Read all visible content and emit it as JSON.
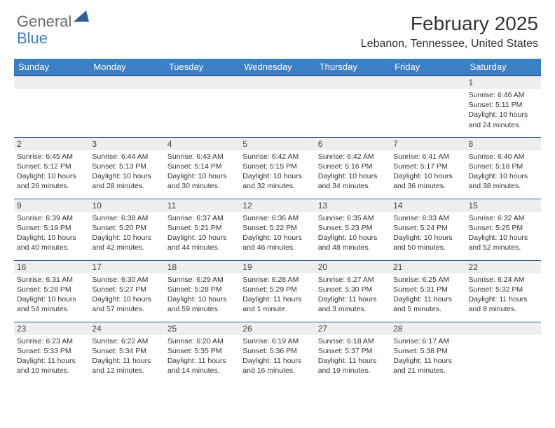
{
  "logo": {
    "text_general": "General",
    "text_blue": "Blue",
    "triangle_color": "#2d5f96"
  },
  "title": "February 2025",
  "location": "Lebanon, Tennessee, United States",
  "colors": {
    "header_bg": "#3b7fc4",
    "header_border": "#2d5f96",
    "daynum_bg": "#eeeeee",
    "text": "#333333",
    "logo_gray": "#6a6a6a",
    "logo_blue": "#3b7fc4"
  },
  "fonts": {
    "title_size": 28,
    "location_size": 16,
    "header_size": 13,
    "daynum_size": 12,
    "content_size": 10.5
  },
  "day_headers": [
    "Sunday",
    "Monday",
    "Tuesday",
    "Wednesday",
    "Thursday",
    "Friday",
    "Saturday"
  ],
  "weeks": [
    [
      {
        "day": "",
        "lines": []
      },
      {
        "day": "",
        "lines": []
      },
      {
        "day": "",
        "lines": []
      },
      {
        "day": "",
        "lines": []
      },
      {
        "day": "",
        "lines": []
      },
      {
        "day": "",
        "lines": []
      },
      {
        "day": "1",
        "lines": [
          "Sunrise: 6:46 AM",
          "Sunset: 5:11 PM",
          "Daylight: 10 hours and 24 minutes."
        ]
      }
    ],
    [
      {
        "day": "2",
        "lines": [
          "Sunrise: 6:45 AM",
          "Sunset: 5:12 PM",
          "Daylight: 10 hours and 26 minutes."
        ]
      },
      {
        "day": "3",
        "lines": [
          "Sunrise: 6:44 AM",
          "Sunset: 5:13 PM",
          "Daylight: 10 hours and 28 minutes."
        ]
      },
      {
        "day": "4",
        "lines": [
          "Sunrise: 6:43 AM",
          "Sunset: 5:14 PM",
          "Daylight: 10 hours and 30 minutes."
        ]
      },
      {
        "day": "5",
        "lines": [
          "Sunrise: 6:42 AM",
          "Sunset: 5:15 PM",
          "Daylight: 10 hours and 32 minutes."
        ]
      },
      {
        "day": "6",
        "lines": [
          "Sunrise: 6:42 AM",
          "Sunset: 5:16 PM",
          "Daylight: 10 hours and 34 minutes."
        ]
      },
      {
        "day": "7",
        "lines": [
          "Sunrise: 6:41 AM",
          "Sunset: 5:17 PM",
          "Daylight: 10 hours and 36 minutes."
        ]
      },
      {
        "day": "8",
        "lines": [
          "Sunrise: 6:40 AM",
          "Sunset: 5:18 PM",
          "Daylight: 10 hours and 38 minutes."
        ]
      }
    ],
    [
      {
        "day": "9",
        "lines": [
          "Sunrise: 6:39 AM",
          "Sunset: 5:19 PM",
          "Daylight: 10 hours and 40 minutes."
        ]
      },
      {
        "day": "10",
        "lines": [
          "Sunrise: 6:38 AM",
          "Sunset: 5:20 PM",
          "Daylight: 10 hours and 42 minutes."
        ]
      },
      {
        "day": "11",
        "lines": [
          "Sunrise: 6:37 AM",
          "Sunset: 5:21 PM",
          "Daylight: 10 hours and 44 minutes."
        ]
      },
      {
        "day": "12",
        "lines": [
          "Sunrise: 6:36 AM",
          "Sunset: 5:22 PM",
          "Daylight: 10 hours and 46 minutes."
        ]
      },
      {
        "day": "13",
        "lines": [
          "Sunrise: 6:35 AM",
          "Sunset: 5:23 PM",
          "Daylight: 10 hours and 48 minutes."
        ]
      },
      {
        "day": "14",
        "lines": [
          "Sunrise: 6:33 AM",
          "Sunset: 5:24 PM",
          "Daylight: 10 hours and 50 minutes."
        ]
      },
      {
        "day": "15",
        "lines": [
          "Sunrise: 6:32 AM",
          "Sunset: 5:25 PM",
          "Daylight: 10 hours and 52 minutes."
        ]
      }
    ],
    [
      {
        "day": "16",
        "lines": [
          "Sunrise: 6:31 AM",
          "Sunset: 5:26 PM",
          "Daylight: 10 hours and 54 minutes."
        ]
      },
      {
        "day": "17",
        "lines": [
          "Sunrise: 6:30 AM",
          "Sunset: 5:27 PM",
          "Daylight: 10 hours and 57 minutes."
        ]
      },
      {
        "day": "18",
        "lines": [
          "Sunrise: 6:29 AM",
          "Sunset: 5:28 PM",
          "Daylight: 10 hours and 59 minutes."
        ]
      },
      {
        "day": "19",
        "lines": [
          "Sunrise: 6:28 AM",
          "Sunset: 5:29 PM",
          "Daylight: 11 hours and 1 minute."
        ]
      },
      {
        "day": "20",
        "lines": [
          "Sunrise: 6:27 AM",
          "Sunset: 5:30 PM",
          "Daylight: 11 hours and 3 minutes."
        ]
      },
      {
        "day": "21",
        "lines": [
          "Sunrise: 6:25 AM",
          "Sunset: 5:31 PM",
          "Daylight: 11 hours and 5 minutes."
        ]
      },
      {
        "day": "22",
        "lines": [
          "Sunrise: 6:24 AM",
          "Sunset: 5:32 PM",
          "Daylight: 11 hours and 8 minutes."
        ]
      }
    ],
    [
      {
        "day": "23",
        "lines": [
          "Sunrise: 6:23 AM",
          "Sunset: 5:33 PM",
          "Daylight: 11 hours and 10 minutes."
        ]
      },
      {
        "day": "24",
        "lines": [
          "Sunrise: 6:22 AM",
          "Sunset: 5:34 PM",
          "Daylight: 11 hours and 12 minutes."
        ]
      },
      {
        "day": "25",
        "lines": [
          "Sunrise: 6:20 AM",
          "Sunset: 5:35 PM",
          "Daylight: 11 hours and 14 minutes."
        ]
      },
      {
        "day": "26",
        "lines": [
          "Sunrise: 6:19 AM",
          "Sunset: 5:36 PM",
          "Daylight: 11 hours and 16 minutes."
        ]
      },
      {
        "day": "27",
        "lines": [
          "Sunrise: 6:18 AM",
          "Sunset: 5:37 PM",
          "Daylight: 11 hours and 19 minutes."
        ]
      },
      {
        "day": "28",
        "lines": [
          "Sunrise: 6:17 AM",
          "Sunset: 5:38 PM",
          "Daylight: 11 hours and 21 minutes."
        ]
      },
      {
        "day": "",
        "lines": []
      }
    ]
  ]
}
